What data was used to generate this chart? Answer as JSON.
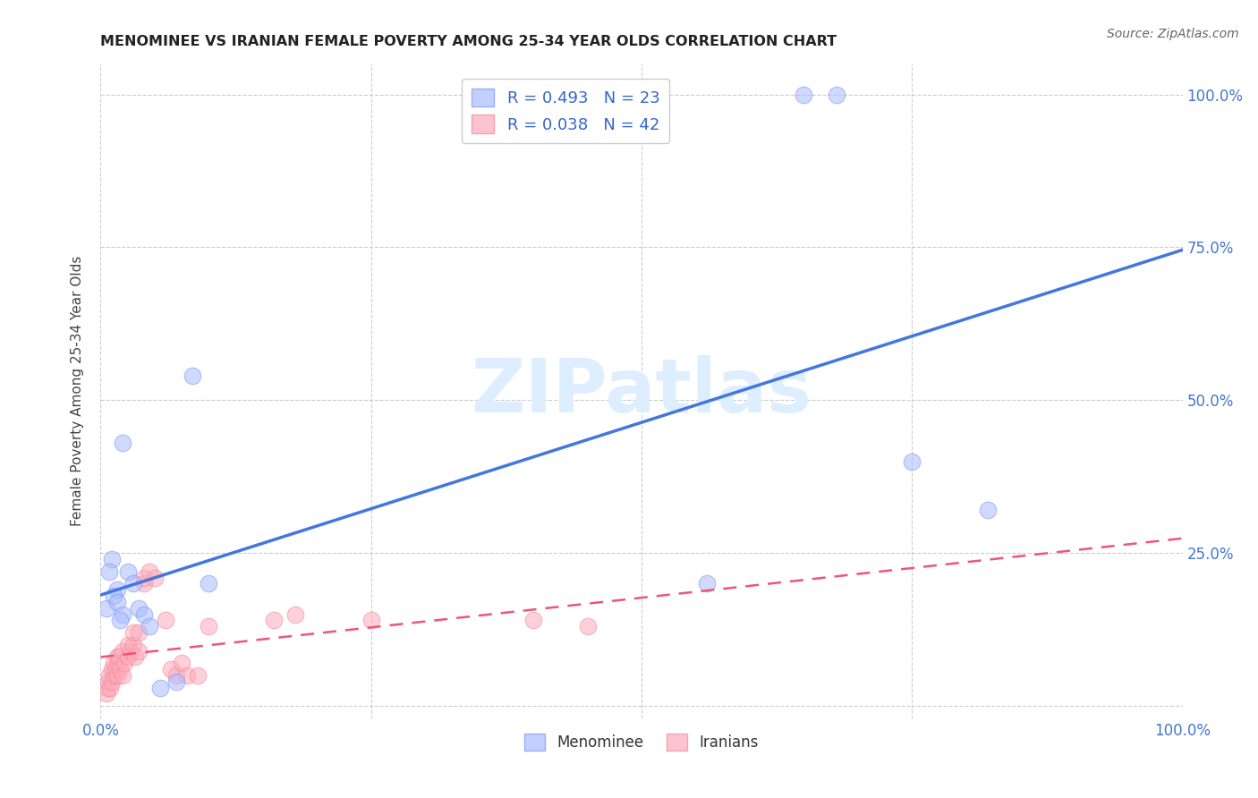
{
  "title": "MENOMINEE VS IRANIAN FEMALE POVERTY AMONG 25-34 YEAR OLDS CORRELATION CHART",
  "source": "Source: ZipAtlas.com",
  "ylabel": "Female Poverty Among 25-34 Year Olds",
  "xlim": [
    0,
    1.0
  ],
  "ylim": [
    -0.02,
    1.05
  ],
  "background_color": "#ffffff",
  "grid_color": "#cccccc",
  "menominee_color": "#aabbff",
  "menominee_edge_color": "#7799ee",
  "iranian_color": "#ffaabb",
  "iranian_edge_color": "#ee8899",
  "menominee_line_color": "#4477dd",
  "iranian_line_color": "#ee5577",
  "watermark_color": "#ddeeff",
  "menominee_x": [
    0.01,
    0.015,
    0.005,
    0.008,
    0.012,
    0.02,
    0.025,
    0.015,
    0.02,
    0.018,
    0.03,
    0.035,
    0.04,
    0.045,
    0.055,
    0.07,
    0.085,
    0.1,
    0.65,
    0.68,
    0.56,
    0.75,
    0.82
  ],
  "menominee_y": [
    0.24,
    0.19,
    0.16,
    0.22,
    0.18,
    0.43,
    0.22,
    0.17,
    0.15,
    0.14,
    0.2,
    0.16,
    0.15,
    0.13,
    0.03,
    0.04,
    0.54,
    0.2,
    1.0,
    1.0,
    0.2,
    0.4,
    0.32
  ],
  "iranian_x": [
    0.005,
    0.006,
    0.007,
    0.008,
    0.009,
    0.01,
    0.01,
    0.012,
    0.013,
    0.014,
    0.015,
    0.015,
    0.016,
    0.017,
    0.018,
    0.02,
    0.02,
    0.022,
    0.025,
    0.025,
    0.028,
    0.03,
    0.03,
    0.032,
    0.035,
    0.035,
    0.04,
    0.04,
    0.045,
    0.05,
    0.06,
    0.065,
    0.07,
    0.075,
    0.08,
    0.09,
    0.1,
    0.16,
    0.18,
    0.25,
    0.4,
    0.45
  ],
  "iranian_y": [
    0.02,
    0.03,
    0.04,
    0.05,
    0.03,
    0.06,
    0.04,
    0.07,
    0.05,
    0.06,
    0.08,
    0.05,
    0.07,
    0.08,
    0.06,
    0.09,
    0.05,
    0.07,
    0.1,
    0.08,
    0.09,
    0.1,
    0.12,
    0.08,
    0.09,
    0.12,
    0.2,
    0.21,
    0.22,
    0.21,
    0.14,
    0.06,
    0.05,
    0.07,
    0.05,
    0.05,
    0.13,
    0.14,
    0.15,
    0.14,
    0.14,
    0.13
  ]
}
